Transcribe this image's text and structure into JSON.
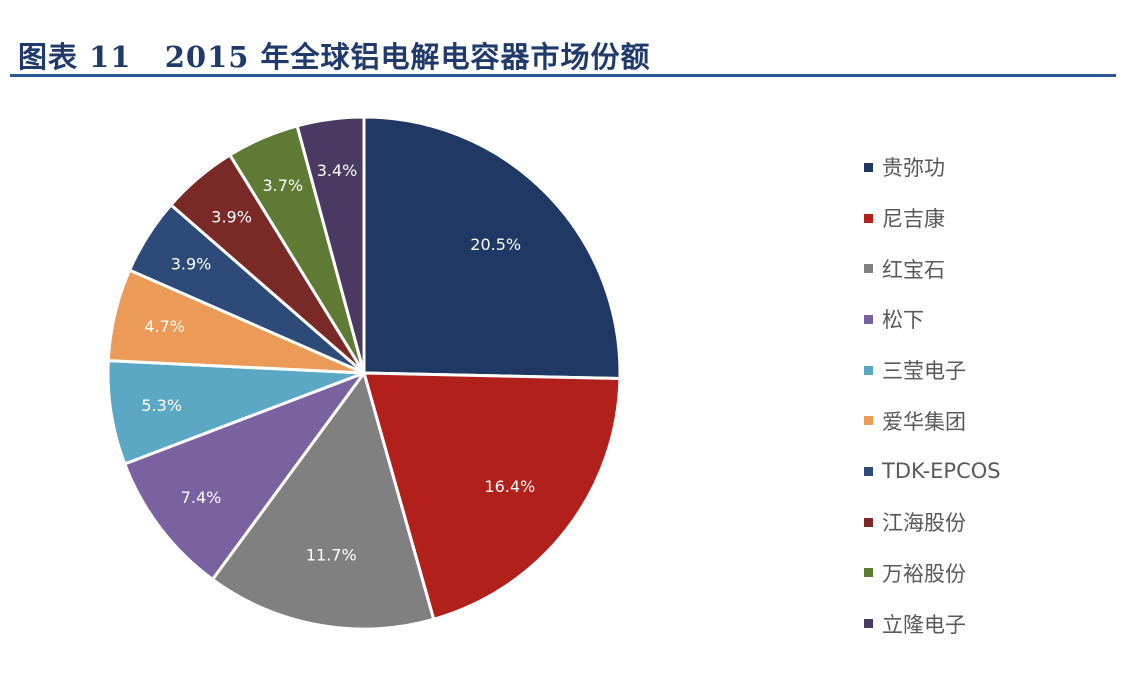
{
  "header": {
    "title": "图表 11   2015 年全球铝电解电容器市场份额"
  },
  "chart_data": {
    "type": "pie",
    "title": "2015年全球铝电解电容器市场份额",
    "categories": [
      "贵弥功",
      "尼吉康",
      "红宝石",
      "松下",
      "三莹电子",
      "爱华集团",
      "TDK-EPCOS",
      "江海股份",
      "万裕股份",
      "立隆电子"
    ],
    "values": [
      20.5,
      16.4,
      11.7,
      7.4,
      5.3,
      4.7,
      3.9,
      3.9,
      3.7,
      3.4
    ],
    "labels": [
      "20.5%",
      "16.4%",
      "11.7%",
      "7.4%",
      "5.3%",
      "4.7%",
      "3.9%",
      "3.9%",
      "3.7%",
      "3.4%"
    ],
    "colors": [
      "#1f3864",
      "#b2201b",
      "#808080",
      "#7a62a0",
      "#5aa8c4",
      "#eb9a57",
      "#2e4a78",
      "#7a2a26",
      "#5f7a35",
      "#4a3a62"
    ],
    "unit": "%",
    "start_angle_deg": 0,
    "direction": "clockwise",
    "legend_position": "right",
    "center": [
      364,
      373
    ],
    "radius": 256
  }
}
